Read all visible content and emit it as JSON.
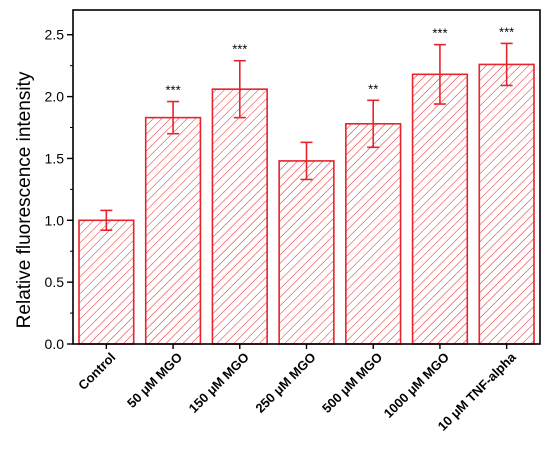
{
  "chart_data": {
    "type": "bar",
    "title": "",
    "xlabel": "",
    "ylabel": "Relative fluorescence intensity",
    "ylim": [
      0,
      2.7
    ],
    "yticks": [
      "0.0",
      "0.5",
      "1.0",
      "1.5",
      "2.0",
      "2.5"
    ],
    "grid": false,
    "legend": "none",
    "categories": [
      "Control",
      "50 μM MGO",
      "150 μM MGO",
      "250 μM MGO",
      "500 μM MGO",
      "1000 μM MGO",
      "10 μM TNF-alpha"
    ],
    "values": [
      1.0,
      1.83,
      2.06,
      1.48,
      1.78,
      2.18,
      2.26
    ],
    "errors": [
      0.08,
      0.13,
      0.23,
      0.15,
      0.19,
      0.24,
      0.17
    ],
    "significance": [
      "",
      "***",
      "***",
      "",
      "**",
      "***",
      "***"
    ],
    "colors": {
      "bar_edge": "#e8232b",
      "hatch": "#e8232b",
      "error_bar": "#e8232b",
      "axis": "#000000"
    },
    "bar_fill": "diagonal-hatch"
  }
}
